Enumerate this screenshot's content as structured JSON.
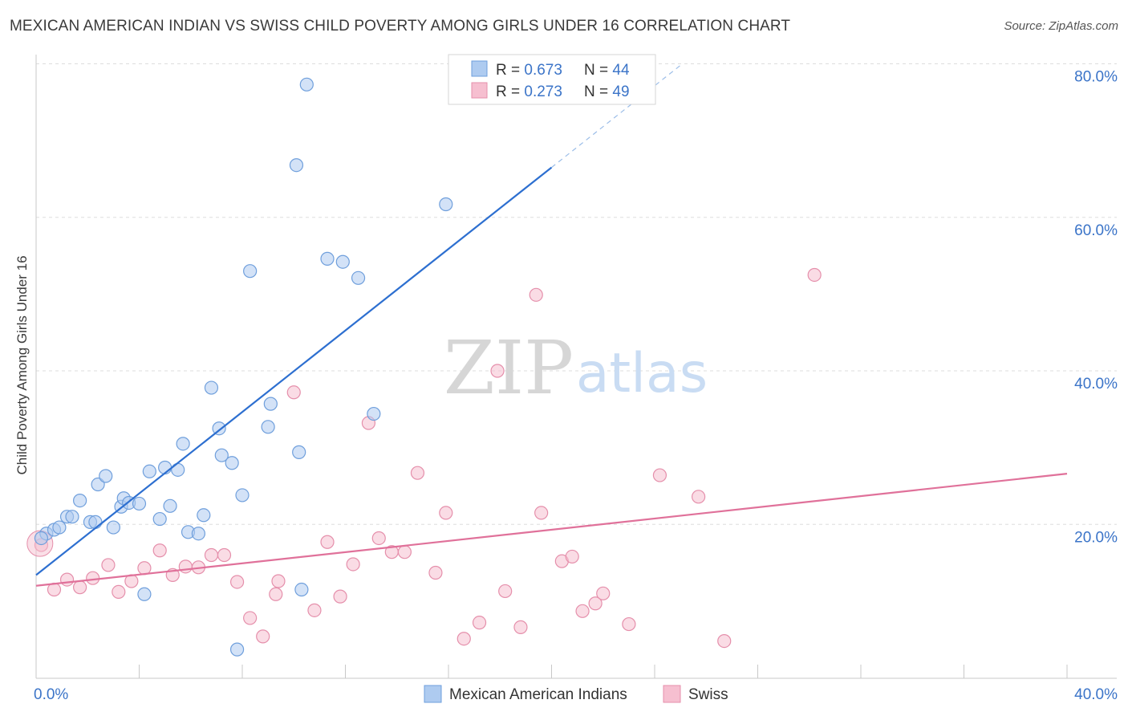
{
  "header": {
    "title": "MEXICAN AMERICAN INDIAN VS SWISS CHILD POVERTY AMONG GIRLS UNDER 16 CORRELATION CHART",
    "source": "Source: ZipAtlas.com"
  },
  "watermark": {
    "zip": "ZIP",
    "atlas": "atlas"
  },
  "colors": {
    "blue_fill": "#aecbf0",
    "blue_stroke": "#6f9fdc",
    "blue_line": "#2d6fd0",
    "pink_fill": "#f6bfd0",
    "pink_stroke": "#e58fab",
    "pink_line": "#e0719a",
    "value_text": "#3b74c8",
    "grid": "#dddddd"
  },
  "chart_data": {
    "type": "scatter",
    "title": "MEXICAN AMERICAN INDIAN VS SWISS CHILD POVERTY AMONG GIRLS UNDER 16 CORRELATION CHART",
    "xlabel": "",
    "ylabel": "Child Poverty Among Girls Under 16",
    "xlim": [
      0,
      40
    ],
    "ylim": [
      0,
      80
    ],
    "x_tick_labels": [
      {
        "value": 0,
        "label": "0.0%"
      },
      {
        "value": 40,
        "label": "40.0%"
      }
    ],
    "y_tick_labels": [
      {
        "value": 20,
        "label": "20.0%"
      },
      {
        "value": 40,
        "label": "40.0%"
      },
      {
        "value": 60,
        "label": "60.0%"
      },
      {
        "value": 80,
        "label": "80.0%"
      }
    ],
    "grid": "horizontal dashed",
    "legend_placement": "bottom-center",
    "stats_box": [
      {
        "r_label": "R = ",
        "r_value": "0.673",
        "n_label": "N = ",
        "n_value": "44"
      },
      {
        "r_label": "R = ",
        "r_value": "0.273",
        "n_label": "N = ",
        "n_value": "49"
      }
    ],
    "series": [
      {
        "name": "Mexican American Indians",
        "color": "#aecbf0",
        "trend": {
          "x": [
            0,
            20
          ],
          "y": [
            13.4,
            66.5
          ],
          "dashed_to": [
            25,
            79.8
          ]
        },
        "points": [
          [
            0.4,
            18.8
          ],
          [
            0.7,
            19.3
          ],
          [
            0.9,
            19.6
          ],
          [
            1.2,
            21.0
          ],
          [
            1.4,
            21.0
          ],
          [
            1.7,
            23.1
          ],
          [
            2.1,
            20.3
          ],
          [
            2.3,
            20.3
          ],
          [
            2.4,
            25.2
          ],
          [
            2.7,
            26.3
          ],
          [
            3.0,
            19.6
          ],
          [
            3.3,
            22.3
          ],
          [
            3.4,
            23.4
          ],
          [
            3.6,
            22.8
          ],
          [
            4.0,
            22.7
          ],
          [
            4.2,
            10.9
          ],
          [
            4.4,
            26.9
          ],
          [
            4.8,
            20.7
          ],
          [
            5.0,
            27.4
          ],
          [
            5.2,
            22.4
          ],
          [
            5.5,
            27.1
          ],
          [
            5.7,
            30.5
          ],
          [
            5.9,
            19.0
          ],
          [
            6.3,
            18.8
          ],
          [
            6.5,
            21.2
          ],
          [
            6.8,
            37.8
          ],
          [
            7.1,
            32.5
          ],
          [
            7.2,
            29.0
          ],
          [
            7.6,
            28.0
          ],
          [
            7.8,
            3.7
          ],
          [
            8.0,
            23.8
          ],
          [
            8.3,
            53.0
          ],
          [
            9.0,
            32.7
          ],
          [
            9.1,
            35.7
          ],
          [
            10.2,
            29.4
          ],
          [
            10.3,
            11.5
          ],
          [
            10.1,
            66.8
          ],
          [
            10.5,
            77.3
          ],
          [
            11.3,
            54.6
          ],
          [
            11.9,
            54.2
          ],
          [
            12.5,
            52.1
          ],
          [
            13.1,
            34.4
          ],
          [
            15.9,
            61.7
          ],
          [
            0.2,
            18.2
          ]
        ]
      },
      {
        "name": "Swiss",
        "color": "#f6bfd0",
        "trend": {
          "x": [
            0,
            40
          ],
          "y": [
            12.0,
            26.6
          ]
        },
        "points": [
          [
            0.2,
            17.3
          ],
          [
            0.7,
            11.5
          ],
          [
            1.2,
            12.8
          ],
          [
            1.7,
            11.8
          ],
          [
            2.2,
            13.0
          ],
          [
            2.8,
            14.7
          ],
          [
            3.2,
            11.2
          ],
          [
            3.7,
            12.6
          ],
          [
            4.2,
            14.3
          ],
          [
            4.8,
            16.6
          ],
          [
            5.3,
            13.4
          ],
          [
            5.8,
            14.5
          ],
          [
            6.3,
            14.4
          ],
          [
            6.8,
            16.0
          ],
          [
            7.3,
            16.0
          ],
          [
            7.8,
            12.5
          ],
          [
            8.3,
            7.8
          ],
          [
            8.8,
            5.4
          ],
          [
            9.3,
            10.9
          ],
          [
            9.4,
            12.6
          ],
          [
            10.0,
            37.2
          ],
          [
            10.8,
            8.8
          ],
          [
            11.3,
            17.7
          ],
          [
            11.8,
            10.6
          ],
          [
            12.3,
            14.8
          ],
          [
            12.9,
            33.2
          ],
          [
            13.3,
            18.2
          ],
          [
            13.8,
            16.4
          ],
          [
            14.3,
            16.4
          ],
          [
            14.8,
            26.7
          ],
          [
            15.5,
            13.7
          ],
          [
            15.9,
            21.5
          ],
          [
            16.6,
            5.1
          ],
          [
            17.2,
            7.2
          ],
          [
            17.9,
            40.0
          ],
          [
            18.2,
            11.3
          ],
          [
            18.8,
            6.6
          ],
          [
            19.4,
            49.9
          ],
          [
            19.6,
            21.5
          ],
          [
            20.4,
            15.2
          ],
          [
            20.8,
            15.8
          ],
          [
            21.2,
            8.7
          ],
          [
            21.7,
            9.7
          ],
          [
            22.0,
            11.0
          ],
          [
            23.0,
            7.0
          ],
          [
            24.2,
            26.4
          ],
          [
            25.7,
            23.6
          ],
          [
            26.7,
            4.8
          ],
          [
            30.2,
            52.5
          ]
        ]
      }
    ]
  }
}
